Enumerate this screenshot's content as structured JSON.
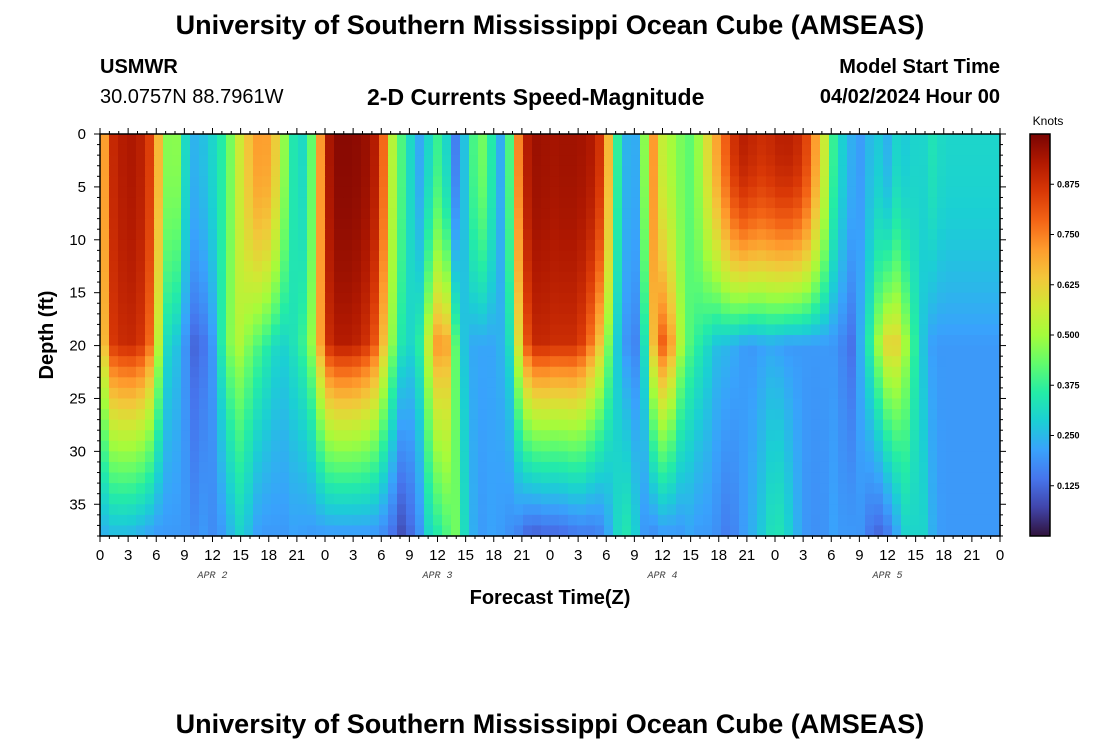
{
  "page": {
    "title": "University of Southern Mississippi Ocean Cube (AMSEAS)",
    "footer_title": "University of Southern Mississippi Ocean Cube (AMSEAS)",
    "station": "USMWR",
    "coords": "30.0757N  88.7961W",
    "subtitle": "2-D Currents Speed-Magnitude",
    "model_start_label": "Model Start Time",
    "model_start_value": "04/02/2024 Hour 00"
  },
  "chart_data": {
    "type": "heatmap",
    "title": "2-D Currents Speed-Magnitude",
    "xlabel": "Forecast Time(Z)",
    "ylabel": "Depth (ft)",
    "colorbar_label": "Knots",
    "x_tick_labels": [
      "0",
      "3",
      "6",
      "9",
      "12",
      "15",
      "18",
      "21",
      "0",
      "3",
      "6",
      "9",
      "12",
      "15",
      "18",
      "21",
      "0",
      "3",
      "6",
      "9",
      "12",
      "15",
      "18",
      "21",
      "0",
      "3",
      "6",
      "9",
      "12",
      "15",
      "18",
      "21",
      "0"
    ],
    "x_range_hours": [
      0,
      96
    ],
    "date_labels": [
      {
        "label": "APR 2",
        "hour": 12
      },
      {
        "label": "APR 3",
        "hour": 36
      },
      {
        "label": "APR 4",
        "hour": 60
      },
      {
        "label": "APR 5",
        "hour": 84
      }
    ],
    "y_ticks": [
      0,
      5,
      10,
      15,
      20,
      25,
      30,
      35
    ],
    "y_range": [
      0,
      38
    ],
    "y_inverted": true,
    "color_range": [
      0.0,
      1.0
    ],
    "colorbar_ticks": [
      0.125,
      0.25,
      0.375,
      0.5,
      0.625,
      0.75,
      0.875
    ],
    "colorbar_tick_labels": [
      "0.125",
      "0.250",
      "0.375",
      "0.500",
      "0.625",
      "0.750",
      "0.875"
    ],
    "colormap": [
      "#30123b",
      "#4145ab",
      "#4675ed",
      "#39a2fc",
      "#1bcfd4",
      "#24eca6",
      "#61fc6c",
      "#a4fc3b",
      "#d1e834",
      "#f3c63a",
      "#fe9b2d",
      "#f36315",
      "#d93806",
      "#b11901",
      "#7a0402"
    ],
    "time_profiles": {
      "hours": [
        0,
        1,
        3,
        5,
        6,
        7,
        7.5,
        8,
        9,
        10,
        11,
        12,
        13,
        14,
        15,
        16,
        17,
        18,
        19,
        20,
        21,
        22,
        23,
        24,
        25,
        27,
        29,
        30,
        31,
        32,
        33,
        34,
        35,
        36,
        37,
        38,
        39,
        40,
        41,
        42,
        43,
        44,
        45,
        46,
        47,
        48,
        49,
        51,
        53,
        54,
        55,
        56,
        57,
        58,
        59,
        60,
        61,
        62,
        63,
        64,
        65,
        66,
        67,
        68,
        69,
        70,
        71,
        72,
        73,
        75,
        77,
        78,
        79,
        80,
        81,
        82,
        83,
        84,
        85,
        86,
        87,
        88,
        89,
        90,
        91,
        92,
        93,
        94,
        95,
        96
      ],
      "surface": [
        0.55,
        0.88,
        0.94,
        0.9,
        0.72,
        0.5,
        0.42,
        0.5,
        0.32,
        0.24,
        0.26,
        0.3,
        0.36,
        0.46,
        0.58,
        0.66,
        0.72,
        0.7,
        0.6,
        0.42,
        0.3,
        0.32,
        0.52,
        0.9,
        0.98,
        0.98,
        0.95,
        0.85,
        0.55,
        0.42,
        0.32,
        0.22,
        0.3,
        0.38,
        0.3,
        0.15,
        0.28,
        0.42,
        0.45,
        0.32,
        0.2,
        0.5,
        0.88,
        0.95,
        0.96,
        0.94,
        0.95,
        0.95,
        0.92,
        0.75,
        0.4,
        0.25,
        0.2,
        0.45,
        0.72,
        0.55,
        0.5,
        0.45,
        0.42,
        0.5,
        0.62,
        0.72,
        0.82,
        0.9,
        0.92,
        0.88,
        0.88,
        0.9,
        0.92,
        0.88,
        0.62,
        0.4,
        0.3,
        0.24,
        0.2,
        0.25,
        0.28,
        0.24,
        0.3,
        0.28,
        0.3,
        0.3,
        0.34,
        0.3,
        0.3,
        0.3,
        0.3,
        0.3,
        0.3,
        0.3
      ],
      "mid": [
        0.5,
        0.85,
        0.9,
        0.85,
        0.6,
        0.32,
        0.3,
        0.28,
        0.2,
        0.12,
        0.14,
        0.2,
        0.36,
        0.48,
        0.52,
        0.45,
        0.4,
        0.35,
        0.3,
        0.3,
        0.35,
        0.4,
        0.55,
        0.85,
        0.92,
        0.92,
        0.85,
        0.7,
        0.5,
        0.35,
        0.3,
        0.35,
        0.55,
        0.72,
        0.7,
        0.4,
        0.25,
        0.22,
        0.22,
        0.22,
        0.25,
        0.35,
        0.72,
        0.88,
        0.9,
        0.88,
        0.88,
        0.88,
        0.7,
        0.5,
        0.3,
        0.2,
        0.15,
        0.3,
        0.65,
        0.8,
        0.7,
        0.5,
        0.4,
        0.35,
        0.3,
        0.25,
        0.25,
        0.22,
        0.2,
        0.2,
        0.22,
        0.22,
        0.2,
        0.2,
        0.2,
        0.2,
        0.18,
        0.12,
        0.22,
        0.35,
        0.5,
        0.62,
        0.62,
        0.5,
        0.35,
        0.25,
        0.2,
        0.2,
        0.2,
        0.2,
        0.2,
        0.2,
        0.2,
        0.2
      ],
      "bottom": [
        0.22,
        0.25,
        0.25,
        0.22,
        0.2,
        0.2,
        0.2,
        0.2,
        0.2,
        0.18,
        0.2,
        0.18,
        0.2,
        0.25,
        0.3,
        0.25,
        0.2,
        0.2,
        0.2,
        0.2,
        0.22,
        0.2,
        0.2,
        0.2,
        0.2,
        0.2,
        0.2,
        0.18,
        0.15,
        0.08,
        0.12,
        0.18,
        0.3,
        0.35,
        0.4,
        0.45,
        0.3,
        0.22,
        0.2,
        0.22,
        0.2,
        0.18,
        0.15,
        0.1,
        0.12,
        0.12,
        0.12,
        0.15,
        0.15,
        0.2,
        0.3,
        0.35,
        0.3,
        0.2,
        0.18,
        0.2,
        0.2,
        0.2,
        0.22,
        0.2,
        0.2,
        0.18,
        0.15,
        0.18,
        0.22,
        0.25,
        0.3,
        0.35,
        0.32,
        0.2,
        0.18,
        0.22,
        0.2,
        0.2,
        0.2,
        0.15,
        0.12,
        0.15,
        0.22,
        0.3,
        0.3,
        0.3,
        0.22,
        0.2,
        0.2,
        0.2,
        0.2,
        0.2,
        0.2,
        0.2
      ]
    }
  }
}
